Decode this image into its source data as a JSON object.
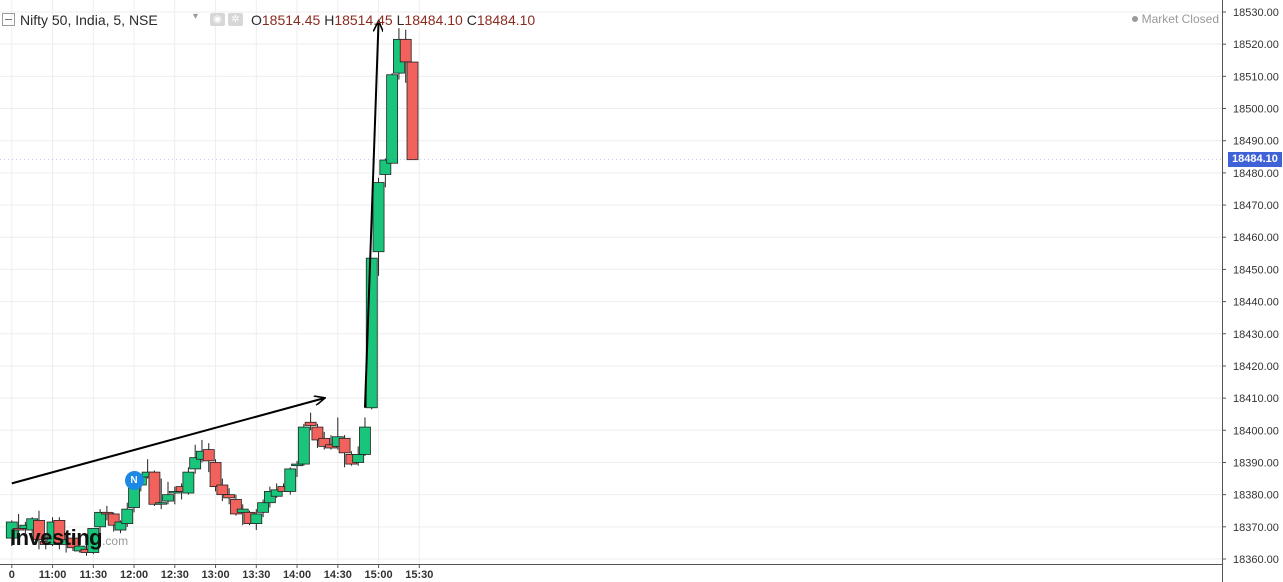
{
  "header": {
    "symbol": "Nifty 50, India, 5, NSE",
    "open_label": "O",
    "open": "18514.45",
    "high_label": "H",
    "high": "18514.45",
    "low_label": "L",
    "low": "18484.10",
    "close_label": "C",
    "close": "18484.10",
    "icons": [
      "chevron-down-icon",
      "eye-icon",
      "gear-icon"
    ]
  },
  "market_status": "Market Closed",
  "last_price_label": "18484.10",
  "watermark": {
    "brand": "Investing",
    "suffix": ".com"
  },
  "news_marker": {
    "label": "N",
    "time": "12:00",
    "price": 18384.5
  },
  "colors": {
    "up": "#18c57b",
    "down": "#f0625b",
    "badge": "#3f62d6",
    "grid": "#eeeeee"
  },
  "chart_data": {
    "type": "candlestick",
    "interval_minutes": 5,
    "xlabel": "",
    "ylabel": "",
    "ylim": [
      18358,
      18534
    ],
    "x_time_range": [
      "10:30",
      "15:30"
    ],
    "y_ticks": [
      18360,
      18370,
      18380,
      18390,
      18400,
      18410,
      18420,
      18430,
      18440,
      18450,
      18460,
      18470,
      18480,
      18490,
      18500,
      18510,
      18520,
      18530
    ],
    "y_tick_labels": [
      "18360.00",
      "18370.00",
      "18380.00",
      "18390.00",
      "18400.00",
      "18410.00",
      "18420.00",
      "18430.00",
      "18440.00",
      "18450.00",
      "18460.00",
      "18470.00",
      "18480.00",
      "18490.00",
      "18500.00",
      "18510.00",
      "18520.00",
      "18530.00"
    ],
    "x_ticks": [
      "10:30",
      "11:00",
      "11:30",
      "12:00",
      "12:30",
      "13:00",
      "13:30",
      "14:00",
      "14:30",
      "15:00",
      "15:30"
    ],
    "x_tick_labels": [
      "0",
      "11:00",
      "11:30",
      "12:00",
      "12:30",
      "13:00",
      "13:30",
      "14:00",
      "14:30",
      "15:00",
      "15:30"
    ],
    "grid": true,
    "last_price": 18484.1,
    "candles": [
      {
        "t": "10:30",
        "o": 18366.5,
        "h": 18372.0,
        "l": 18364.0,
        "c": 18371.5
      },
      {
        "t": "10:35",
        "o": 18369.5,
        "h": 18374.0,
        "l": 18368.0,
        "c": 18369.0
      },
      {
        "t": "10:40",
        "o": 18369.5,
        "h": 18371.5,
        "l": 18368.0,
        "c": 18370.5
      },
      {
        "t": "10:45",
        "o": 18369.0,
        "h": 18373.0,
        "l": 18366.0,
        "c": 18372.5
      },
      {
        "t": "10:50",
        "o": 18372.0,
        "h": 18375.0,
        "l": 18363.0,
        "c": 18366.0
      },
      {
        "t": "10:55",
        "o": 18365.5,
        "h": 18368.0,
        "l": 18363.0,
        "c": 18364.5
      },
      {
        "t": "11:00",
        "o": 18364.5,
        "h": 18373.0,
        "l": 18364.0,
        "c": 18371.5
      },
      {
        "t": "11:05",
        "o": 18372.0,
        "h": 18373.0,
        "l": 18363.0,
        "c": 18365.0
      },
      {
        "t": "11:10",
        "o": 18364.5,
        "h": 18367.0,
        "l": 18362.0,
        "c": 18366.0
      },
      {
        "t": "11:15",
        "o": 18366.5,
        "h": 18367.0,
        "l": 18362.5,
        "c": 18363.5
      },
      {
        "t": "11:20",
        "o": 18362.5,
        "h": 18364.5,
        "l": 18362.0,
        "c": 18364.0
      },
      {
        "t": "11:25",
        "o": 18363.0,
        "h": 18364.5,
        "l": 18361.0,
        "c": 18362.0
      },
      {
        "t": "11:30",
        "o": 18362.0,
        "h": 18369.5,
        "l": 18361.5,
        "c": 18369.5
      },
      {
        "t": "11:35",
        "o": 18370.0,
        "h": 18375.5,
        "l": 18368.0,
        "c": 18374.5
      },
      {
        "t": "11:40",
        "o": 18374.5,
        "h": 18376.5,
        "l": 18372.0,
        "c": 18374.0
      },
      {
        "t": "11:45",
        "o": 18374.0,
        "h": 18374.5,
        "l": 18368.5,
        "c": 18370.5
      },
      {
        "t": "11:50",
        "o": 18369.0,
        "h": 18372.0,
        "l": 18368.0,
        "c": 18371.5
      },
      {
        "t": "11:55",
        "o": 18371.0,
        "h": 18377.5,
        "l": 18370.0,
        "c": 18375.5
      },
      {
        "t": "12:00",
        "o": 18376.0,
        "h": 18382.5,
        "l": 18374.5,
        "c": 18382.0
      },
      {
        "t": "12:05",
        "o": 18383.0,
        "h": 18386.0,
        "l": 18381.0,
        "c": 18385.5
      },
      {
        "t": "12:10",
        "o": 18385.5,
        "h": 18391.0,
        "l": 18385.0,
        "c": 18387.0
      },
      {
        "t": "12:15",
        "o": 18387.0,
        "h": 18387.5,
        "l": 18376.5,
        "c": 18377.0
      },
      {
        "t": "12:20",
        "o": 18377.5,
        "h": 18385.0,
        "l": 18375.5,
        "c": 18377.5
      },
      {
        "t": "12:25",
        "o": 18378.0,
        "h": 18384.0,
        "l": 18377.0,
        "c": 18380.0
      },
      {
        "t": "12:30",
        "o": 18380.5,
        "h": 18382.5,
        "l": 18377.0,
        "c": 18381.0
      },
      {
        "t": "12:35",
        "o": 18382.5,
        "h": 18383.5,
        "l": 18378.5,
        "c": 18381.0
      },
      {
        "t": "12:40",
        "o": 18380.5,
        "h": 18388.5,
        "l": 18380.0,
        "c": 18387.0
      },
      {
        "t": "12:45",
        "o": 18388.0,
        "h": 18395.5,
        "l": 18386.5,
        "c": 18391.5
      },
      {
        "t": "12:50",
        "o": 18391.0,
        "h": 18397.0,
        "l": 18390.0,
        "c": 18393.5
      },
      {
        "t": "12:55",
        "o": 18394.0,
        "h": 18396.0,
        "l": 18387.0,
        "c": 18390.5
      },
      {
        "t": "13:00",
        "o": 18390.0,
        "h": 18391.0,
        "l": 18381.0,
        "c": 18382.5
      },
      {
        "t": "13:05",
        "o": 18383.0,
        "h": 18385.0,
        "l": 18378.0,
        "c": 18380.0
      },
      {
        "t": "13:10",
        "o": 18380.0,
        "h": 18382.0,
        "l": 18377.0,
        "c": 18379.0
      },
      {
        "t": "13:15",
        "o": 18378.5,
        "h": 18380.0,
        "l": 18373.5,
        "c": 18374.0
      },
      {
        "t": "13:20",
        "o": 18374.5,
        "h": 18377.0,
        "l": 18370.5,
        "c": 18375.5
      },
      {
        "t": "13:25",
        "o": 18374.5,
        "h": 18375.0,
        "l": 18370.5,
        "c": 18371.0
      },
      {
        "t": "13:30",
        "o": 18371.0,
        "h": 18375.5,
        "l": 18369.0,
        "c": 18374.0
      },
      {
        "t": "13:35",
        "o": 18374.5,
        "h": 18378.5,
        "l": 18373.0,
        "c": 18377.5
      },
      {
        "t": "13:40",
        "o": 18377.5,
        "h": 18382.5,
        "l": 18376.0,
        "c": 18381.0
      },
      {
        "t": "13:45",
        "o": 18379.5,
        "h": 18383.5,
        "l": 18379.0,
        "c": 18381.5
      },
      {
        "t": "13:50",
        "o": 18382.5,
        "h": 18383.5,
        "l": 18381.0,
        "c": 18381.0
      },
      {
        "t": "13:55",
        "o": 18381.0,
        "h": 18388.5,
        "l": 18380.0,
        "c": 18388.0
      },
      {
        "t": "14:00",
        "o": 18389.0,
        "h": 18390.5,
        "l": 18385.5,
        "c": 18389.5
      },
      {
        "t": "14:05",
        "o": 18389.5,
        "h": 18402.0,
        "l": 18389.0,
        "c": 18401.0
      },
      {
        "t": "14:10",
        "o": 18402.5,
        "h": 18405.5,
        "l": 18400.0,
        "c": 18401.5
      },
      {
        "t": "14:15",
        "o": 18401.0,
        "h": 18402.0,
        "l": 18394.5,
        "c": 18397.0
      },
      {
        "t": "14:20",
        "o": 18397.5,
        "h": 18399.5,
        "l": 18394.0,
        "c": 18395.0
      },
      {
        "t": "14:25",
        "o": 18395.5,
        "h": 18398.5,
        "l": 18394.0,
        "c": 18394.5
      },
      {
        "t": "14:30",
        "o": 18395.0,
        "h": 18404.0,
        "l": 18394.0,
        "c": 18398.0
      },
      {
        "t": "14:35",
        "o": 18397.5,
        "h": 18398.5,
        "l": 18388.5,
        "c": 18393.0
      },
      {
        "t": "14:40",
        "o": 18392.5,
        "h": 18393.5,
        "l": 18389.0,
        "c": 18389.5
      },
      {
        "t": "14:45",
        "o": 18390.0,
        "h": 18395.0,
        "l": 18389.0,
        "c": 18392.5
      },
      {
        "t": "14:50",
        "o": 18392.5,
        "h": 18404.0,
        "l": 18392.0,
        "c": 18401.0
      },
      {
        "t": "14:55",
        "o": 18407.0,
        "h": 18453.5,
        "l": 18406.5,
        "c": 18453.5
      },
      {
        "t": "15:00",
        "o": 18455.5,
        "h": 18478.5,
        "l": 18448.0,
        "c": 18477.0
      },
      {
        "t": "15:05",
        "o": 18479.5,
        "h": 18484.5,
        "l": 18475.5,
        "c": 18484.0
      },
      {
        "t": "15:10",
        "o": 18483.0,
        "h": 18511.0,
        "l": 18483.0,
        "c": 18510.5
      },
      {
        "t": "15:15",
        "o": 18511.0,
        "h": 18525.0,
        "l": 18509.0,
        "c": 18521.5
      },
      {
        "t": "15:20",
        "o": 18521.5,
        "h": 18524.5,
        "l": 18508.0,
        "c": 18514.5
      },
      {
        "t": "15:25",
        "o": 18514.45,
        "h": 18514.45,
        "l": 18484.1,
        "c": 18484.1
      }
    ],
    "annotations": [
      {
        "type": "arrow",
        "from": {
          "t": "10:30",
          "price": 18383.5
        },
        "to": {
          "t": "14:20",
          "price": 18410.0
        }
      },
      {
        "type": "arrow",
        "from": {
          "t": "14:50",
          "price": 18407.0
        },
        "to": {
          "t": "15:00",
          "price": 18527.0
        }
      }
    ]
  }
}
